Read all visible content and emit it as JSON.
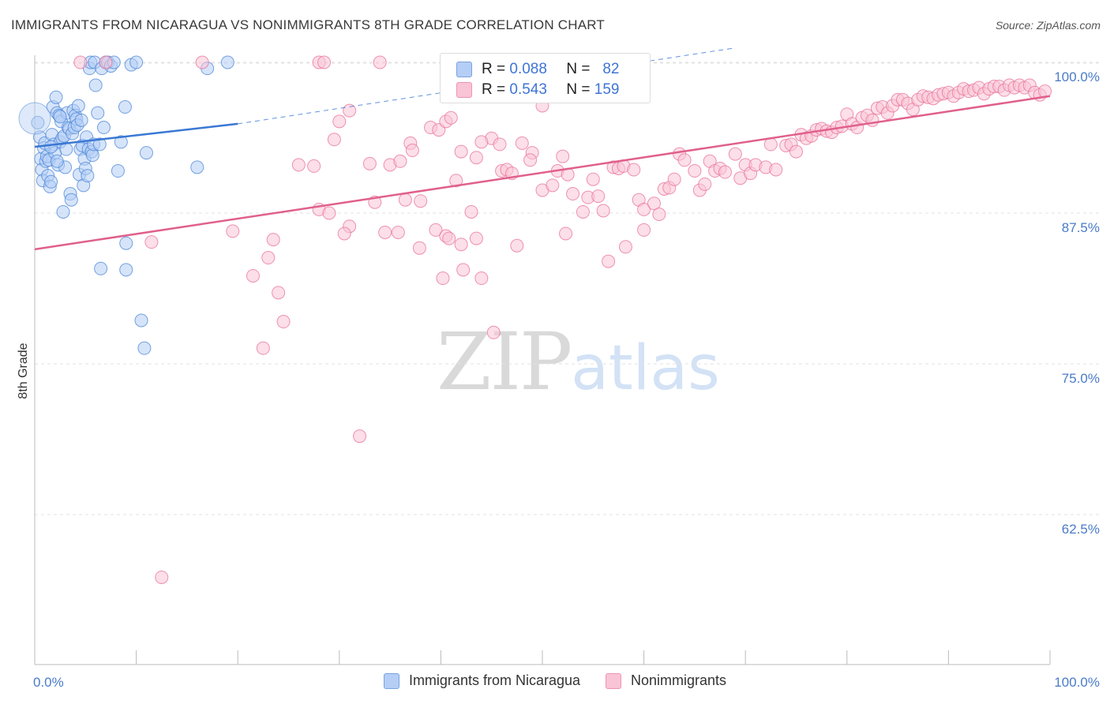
{
  "title": "IMMIGRANTS FROM NICARAGUA VS NONIMMIGRANTS 8TH GRADE CORRELATION CHART",
  "source": "Source: ZipAtlas.com",
  "watermark": {
    "zip": "ZIP",
    "atlas": "atlas"
  },
  "legend": {
    "r_label": "R =",
    "n_label": "N =",
    "rows": [
      {
        "r": "0.088",
        "n": "82"
      },
      {
        "r": "0.543",
        "n": "159"
      }
    ]
  },
  "colors": {
    "blue": "#4a86d6",
    "blue_fill": "#b5cef5",
    "pink": "#e8709a",
    "pink_fill": "#f9c4d5",
    "axis_text": "#4a7bc8"
  },
  "chart_data": {
    "type": "scatter",
    "title": "IMMIGRANTS FROM NICARAGUA VS NONIMMIGRANTS 8TH GRADE CORRELATION CHART",
    "xlabel": "",
    "ylabel": "8th Grade",
    "xlim": [
      0,
      100
    ],
    "ylim": [
      50,
      101.5
    ],
    "x_tick_labels": [
      "0.0%",
      "100.0%"
    ],
    "y_ticks": [
      100,
      87.5,
      75,
      62.5
    ],
    "y_tick_labels": [
      "100.0%",
      "87.5%",
      "75.0%",
      "62.5%"
    ],
    "grid": true,
    "legend_position": "bottom-center",
    "series": [
      {
        "name": "Immigrants from Nicaragua",
        "color": "#4a86d6",
        "r": 0.088,
        "n": 82,
        "trend": {
          "x": [
            0,
            20
          ],
          "y": [
            93.0,
            94.9
          ],
          "dashed_to": [
            69,
            101.2
          ]
        },
        "points": [
          [
            0.3,
            95.0
          ],
          [
            0.5,
            93.8
          ],
          [
            0.6,
            92.0
          ],
          [
            0.7,
            91.1
          ],
          [
            0.8,
            90.2
          ],
          [
            0.9,
            92.9
          ],
          [
            1.0,
            93.3
          ],
          [
            1.1,
            91.8
          ],
          [
            1.2,
            92.2
          ],
          [
            1.3,
            90.6
          ],
          [
            1.4,
            91.9
          ],
          [
            1.5,
            89.7
          ],
          [
            1.6,
            90.1
          ],
          [
            1.7,
            94.0
          ],
          [
            1.8,
            96.3
          ],
          [
            1.9,
            93.2
          ],
          [
            2.0,
            92.5
          ],
          [
            2.1,
            97.1
          ],
          [
            2.2,
            95.8
          ],
          [
            2.3,
            91.5
          ],
          [
            2.4,
            95.6
          ],
          [
            2.5,
            93.4
          ],
          [
            2.6,
            95.1
          ],
          [
            2.7,
            93.7
          ],
          [
            2.8,
            87.6
          ],
          [
            2.9,
            93.9
          ],
          [
            3.0,
            91.3
          ],
          [
            3.1,
            92.8
          ],
          [
            3.2,
            95.8
          ],
          [
            3.3,
            94.6
          ],
          [
            3.4,
            94.5
          ],
          [
            3.5,
            89.1
          ],
          [
            3.6,
            88.6
          ],
          [
            3.7,
            94.1
          ],
          [
            3.8,
            96.0
          ],
          [
            3.9,
            94.6
          ],
          [
            4.0,
            95.6
          ],
          [
            4.1,
            95.3
          ],
          [
            4.2,
            94.8
          ],
          [
            4.3,
            96.4
          ],
          [
            4.4,
            90.7
          ],
          [
            4.5,
            92.8
          ],
          [
            4.6,
            95.2
          ],
          [
            4.7,
            93.1
          ],
          [
            4.8,
            89.8
          ],
          [
            4.9,
            92.0
          ],
          [
            5.0,
            91.2
          ],
          [
            5.1,
            93.8
          ],
          [
            5.2,
            90.6
          ],
          [
            5.3,
            92.8
          ],
          [
            5.4,
            99.5
          ],
          [
            5.5,
            100.0
          ],
          [
            5.6,
            92.6
          ],
          [
            5.7,
            92.3
          ],
          [
            5.8,
            93.2
          ],
          [
            5.9,
            100.0
          ],
          [
            6.0,
            98.1
          ],
          [
            6.2,
            95.8
          ],
          [
            6.4,
            93.2
          ],
          [
            6.6,
            99.5
          ],
          [
            6.8,
            94.6
          ],
          [
            7.0,
            100.0
          ],
          [
            7.2,
            100.0
          ],
          [
            7.5,
            99.7
          ],
          [
            7.8,
            100.0
          ],
          [
            8.2,
            91.0
          ],
          [
            8.5,
            93.4
          ],
          [
            8.9,
            96.3
          ],
          [
            9.5,
            99.8
          ],
          [
            10.0,
            100.0
          ],
          [
            11.0,
            92.5
          ],
          [
            16.0,
            91.3
          ],
          [
            17.0,
            99.5
          ],
          [
            19.0,
            100.0
          ],
          [
            6.5,
            82.9
          ],
          [
            9.0,
            82.8
          ],
          [
            9.0,
            85.0
          ],
          [
            10.5,
            78.6
          ],
          [
            10.8,
            76.3
          ],
          [
            2.5,
            95.5
          ],
          [
            1.6,
            93.0
          ],
          [
            2.2,
            91.8
          ]
        ]
      },
      {
        "name": "Nonimmigrants",
        "color": "#e8709a",
        "r": 0.543,
        "n": 159,
        "trend": {
          "x": [
            0,
            100
          ],
          "y": [
            84.5,
            97.2
          ]
        },
        "points": [
          [
            4.5,
            100.0
          ],
          [
            7.0,
            100.0
          ],
          [
            16.5,
            100.0
          ],
          [
            28,
            100.0
          ],
          [
            28.5,
            100.0
          ],
          [
            34,
            100.0
          ],
          [
            11.5,
            85.1
          ],
          [
            19.5,
            86.0
          ],
          [
            21.5,
            82.3
          ],
          [
            23.5,
            85.3
          ],
          [
            24,
            80.9
          ],
          [
            22.5,
            76.3
          ],
          [
            12.5,
            57.3
          ],
          [
            30,
            95.1
          ],
          [
            26,
            91.5
          ],
          [
            27.5,
            91.4
          ],
          [
            28,
            87.8
          ],
          [
            29.5,
            93.6
          ],
          [
            29,
            87.5
          ],
          [
            31,
            86.4
          ],
          [
            31,
            96.0
          ],
          [
            30.5,
            85.8
          ],
          [
            33,
            91.6
          ],
          [
            33.5,
            88.4
          ],
          [
            34.5,
            85.9
          ],
          [
            35,
            91.5
          ],
          [
            35.8,
            85.9
          ],
          [
            36,
            91.8
          ],
          [
            37,
            93.3
          ],
          [
            37.2,
            92.7
          ],
          [
            39,
            94.6
          ],
          [
            39.8,
            94.4
          ],
          [
            40.5,
            95.1
          ],
          [
            41,
            95.4
          ],
          [
            38,
            88.5
          ],
          [
            39.5,
            86.1
          ],
          [
            40.5,
            85.6
          ],
          [
            40.2,
            82.1
          ],
          [
            42.2,
            82.8
          ],
          [
            41.5,
            90.2
          ],
          [
            42,
            92.6
          ],
          [
            43.5,
            92.1
          ],
          [
            43,
            87.6
          ],
          [
            43.5,
            85.4
          ],
          [
            45,
            93.7
          ],
          [
            45.8,
            93.2
          ],
          [
            46,
            91.0
          ],
          [
            46.5,
            91.1
          ],
          [
            47,
            90.8
          ],
          [
            47.5,
            84.8
          ],
          [
            48,
            93.3
          ],
          [
            49,
            92.5
          ],
          [
            50,
            96.4
          ],
          [
            50,
            89.4
          ],
          [
            51,
            89.8
          ],
          [
            51.5,
            91.0
          ],
          [
            52,
            92.2
          ],
          [
            52.5,
            90.7
          ],
          [
            53,
            89.1
          ],
          [
            54,
            87.6
          ],
          [
            54.5,
            88.8
          ],
          [
            55.5,
            88.9
          ],
          [
            56,
            87.7
          ],
          [
            57,
            91.3
          ],
          [
            57.5,
            91.2
          ],
          [
            58,
            91.4
          ],
          [
            59,
            91.1
          ],
          [
            59.5,
            88.6
          ],
          [
            60,
            87.8
          ],
          [
            61,
            88.3
          ],
          [
            62,
            89.5
          ],
          [
            62.5,
            89.6
          ],
          [
            63,
            90.3
          ],
          [
            63.5,
            92.4
          ],
          [
            64,
            91.9
          ],
          [
            65,
            91.0
          ],
          [
            65.5,
            89.4
          ],
          [
            66,
            89.9
          ],
          [
            66.5,
            91.8
          ],
          [
            67,
            91.0
          ],
          [
            67.5,
            91.2
          ],
          [
            68,
            90.9
          ],
          [
            69,
            92.4
          ],
          [
            69.5,
            90.4
          ],
          [
            70,
            91.5
          ],
          [
            70.5,
            90.8
          ],
          [
            71,
            91.5
          ],
          [
            72,
            91.3
          ],
          [
            72.5,
            93.2
          ],
          [
            73,
            91.1
          ],
          [
            74,
            93.1
          ],
          [
            74.5,
            93.2
          ],
          [
            75,
            92.6
          ],
          [
            75.5,
            94.0
          ],
          [
            76,
            93.7
          ],
          [
            76.5,
            93.9
          ],
          [
            77,
            94.4
          ],
          [
            77.5,
            94.5
          ],
          [
            78,
            94.3
          ],
          [
            78.5,
            94.2
          ],
          [
            79,
            94.6
          ],
          [
            79.5,
            94.7
          ],
          [
            80,
            95.7
          ],
          [
            80.5,
            94.9
          ],
          [
            81,
            94.6
          ],
          [
            81.5,
            95.4
          ],
          [
            82,
            95.6
          ],
          [
            82.5,
            95.2
          ],
          [
            83,
            96.2
          ],
          [
            83.5,
            96.3
          ],
          [
            84,
            95.8
          ],
          [
            84.5,
            96.4
          ],
          [
            85,
            96.9
          ],
          [
            85.5,
            96.9
          ],
          [
            86,
            96.6
          ],
          [
            86.5,
            96.1
          ],
          [
            87,
            96.9
          ],
          [
            87.5,
            97.2
          ],
          [
            88,
            97.1
          ],
          [
            88.5,
            97.0
          ],
          [
            89,
            97.3
          ],
          [
            89.5,
            97.4
          ],
          [
            90,
            97.5
          ],
          [
            90.5,
            97.2
          ],
          [
            91,
            97.5
          ],
          [
            91.5,
            97.8
          ],
          [
            92,
            97.6
          ],
          [
            92.5,
            97.7
          ],
          [
            93,
            97.9
          ],
          [
            93.5,
            97.4
          ],
          [
            94,
            97.8
          ],
          [
            94.5,
            98.0
          ],
          [
            95,
            98.0
          ],
          [
            95.5,
            97.7
          ],
          [
            96,
            98.1
          ],
          [
            96.5,
            97.9
          ],
          [
            97,
            98.1
          ],
          [
            97.5,
            97.9
          ],
          [
            98,
            98.1
          ],
          [
            98.5,
            97.5
          ],
          [
            99,
            97.3
          ],
          [
            99.5,
            97.6
          ],
          [
            24.5,
            78.5
          ],
          [
            36.5,
            88.6
          ],
          [
            45.2,
            77.6
          ],
          [
            32,
            69.0
          ],
          [
            44,
            82.1
          ],
          [
            44,
            93.4
          ],
          [
            55,
            90.3
          ],
          [
            58.2,
            84.7
          ],
          [
            42,
            84.9
          ],
          [
            48.8,
            91.9
          ],
          [
            37.9,
            84.6
          ],
          [
            40.8,
            85.4
          ],
          [
            52.3,
            85.8
          ],
          [
            56.5,
            83.5
          ],
          [
            60,
            86.1
          ],
          [
            61.5,
            87.4
          ],
          [
            23,
            83.8
          ]
        ]
      }
    ]
  }
}
